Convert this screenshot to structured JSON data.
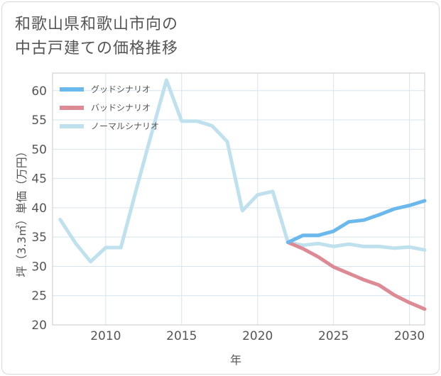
{
  "title_lines": [
    "和歌山県和歌山市向の",
    "中古戸建ての価格推移"
  ],
  "chart_data": {
    "type": "line",
    "title": "和歌山県和歌山市向の中古戸建ての価格推移",
    "xlabel": "年",
    "ylabel": "坪（3.3㎡）単価（万円）",
    "xlim": [
      2006.5,
      2031
    ],
    "ylim": [
      20,
      63
    ],
    "grid": true,
    "legend_position": "top-left",
    "x_ticks": [
      2010,
      2015,
      2020,
      2025,
      2030
    ],
    "y_ticks": [
      20,
      25,
      30,
      35,
      40,
      45,
      50,
      55,
      60
    ],
    "series": [
      {
        "name": "グッドシナリオ",
        "color": "#6bb8ec",
        "x": [
          2022,
          2023,
          2024,
          2025,
          2026,
          2027,
          2028,
          2029,
          2030,
          2031
        ],
        "y": [
          34.1,
          35.3,
          35.3,
          36.0,
          37.6,
          37.9,
          38.8,
          39.8,
          40.4,
          41.2
        ]
      },
      {
        "name": "バッドシナリオ",
        "color": "#de8a94",
        "x": [
          2022,
          2023,
          2024,
          2025,
          2026,
          2027,
          2028,
          2029,
          2030,
          2031
        ],
        "y": [
          34.1,
          33.0,
          31.6,
          29.9,
          28.8,
          27.7,
          26.8,
          25.1,
          23.8,
          22.7
        ]
      },
      {
        "name": "ノーマルシナリオ",
        "color": "#bfe1ee",
        "x": [
          2007,
          2008,
          2009,
          2010,
          2011,
          2012,
          2013,
          2014,
          2015,
          2016,
          2017,
          2018,
          2019,
          2020,
          2021,
          2022,
          2023,
          2024,
          2025,
          2026,
          2027,
          2028,
          2029,
          2030,
          2031
        ],
        "y": [
          38.0,
          34.0,
          30.8,
          33.2,
          33.2,
          43.0,
          52.5,
          61.8,
          54.8,
          54.8,
          54.0,
          51.3,
          39.5,
          42.2,
          42.8,
          34.1,
          33.6,
          33.9,
          33.4,
          33.8,
          33.4,
          33.4,
          33.1,
          33.3,
          32.8
        ]
      }
    ]
  }
}
